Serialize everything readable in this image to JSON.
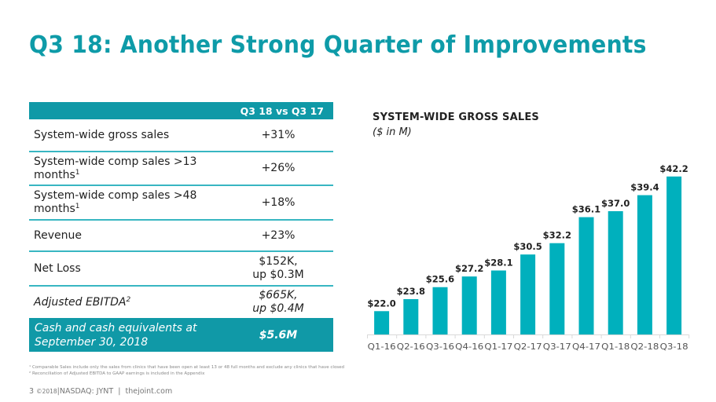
{
  "slide": {
    "title": "Q3 18: Another Strong Quarter of Improvements",
    "page_number": "3",
    "copyright": "©2018",
    "ticker": "NASDAQ: JYNT",
    "website": "thejoint.com",
    "accent_color": "#0e9ba8"
  },
  "table": {
    "header": "Q3 18 vs Q3 17",
    "rows": [
      {
        "label": "System-wide gross sales",
        "sup": "",
        "value": "+31%",
        "value2": ""
      },
      {
        "label": "System-wide comp sales >13 months",
        "sup": "1",
        "value": "+26%",
        "value2": ""
      },
      {
        "label": "System-wide comp sales >48 months",
        "sup": "1",
        "value": "+18%",
        "value2": ""
      },
      {
        "label": "Revenue",
        "sup": "",
        "value": "+23%",
        "value2": ""
      },
      {
        "label": "Net Loss",
        "sup": "",
        "value": "$152K,",
        "value2": "up $0.3M"
      },
      {
        "label": "Adjusted EBITDA",
        "sup": "2",
        "value": "$665K,",
        "value2": "up $0.4M"
      }
    ],
    "cash_row": {
      "label_line1": "Cash and cash equivalents at",
      "label_line2": "September 30, 2018",
      "value": "$5.6M"
    }
  },
  "footnotes": [
    "¹ Comparable Sales include only the sales from clinics that have been open at least 13 or 48 full months and exclude any clinics that have closed",
    "² Reconciliation of Adjusted EBITDA to GAAP earnings is included in the Appendix"
  ],
  "chart_data": {
    "type": "bar",
    "title": "SYSTEM-WIDE GROSS SALES",
    "subtitle": "($ in M)",
    "xlabel": "",
    "ylabel": "",
    "categories": [
      "Q1-16",
      "Q2-16",
      "Q3-16",
      "Q4-16",
      "Q1-17",
      "Q2-17",
      "Q3-17",
      "Q4-17",
      "Q1-18",
      "Q2-18",
      "Q3-18"
    ],
    "values": [
      22.0,
      23.8,
      25.6,
      27.2,
      28.1,
      30.5,
      32.2,
      36.1,
      37.0,
      39.4,
      42.2
    ],
    "data_labels": [
      "$22.0",
      "$23.8",
      "$25.6",
      "$27.2",
      "$28.1",
      "$30.5",
      "$32.2",
      "$36.1",
      "$37.0",
      "$39.4",
      "$42.2"
    ],
    "bar_color": "#00b0bd",
    "ylim": [
      18.5,
      43
    ],
    "grid": false,
    "legend": "none"
  }
}
